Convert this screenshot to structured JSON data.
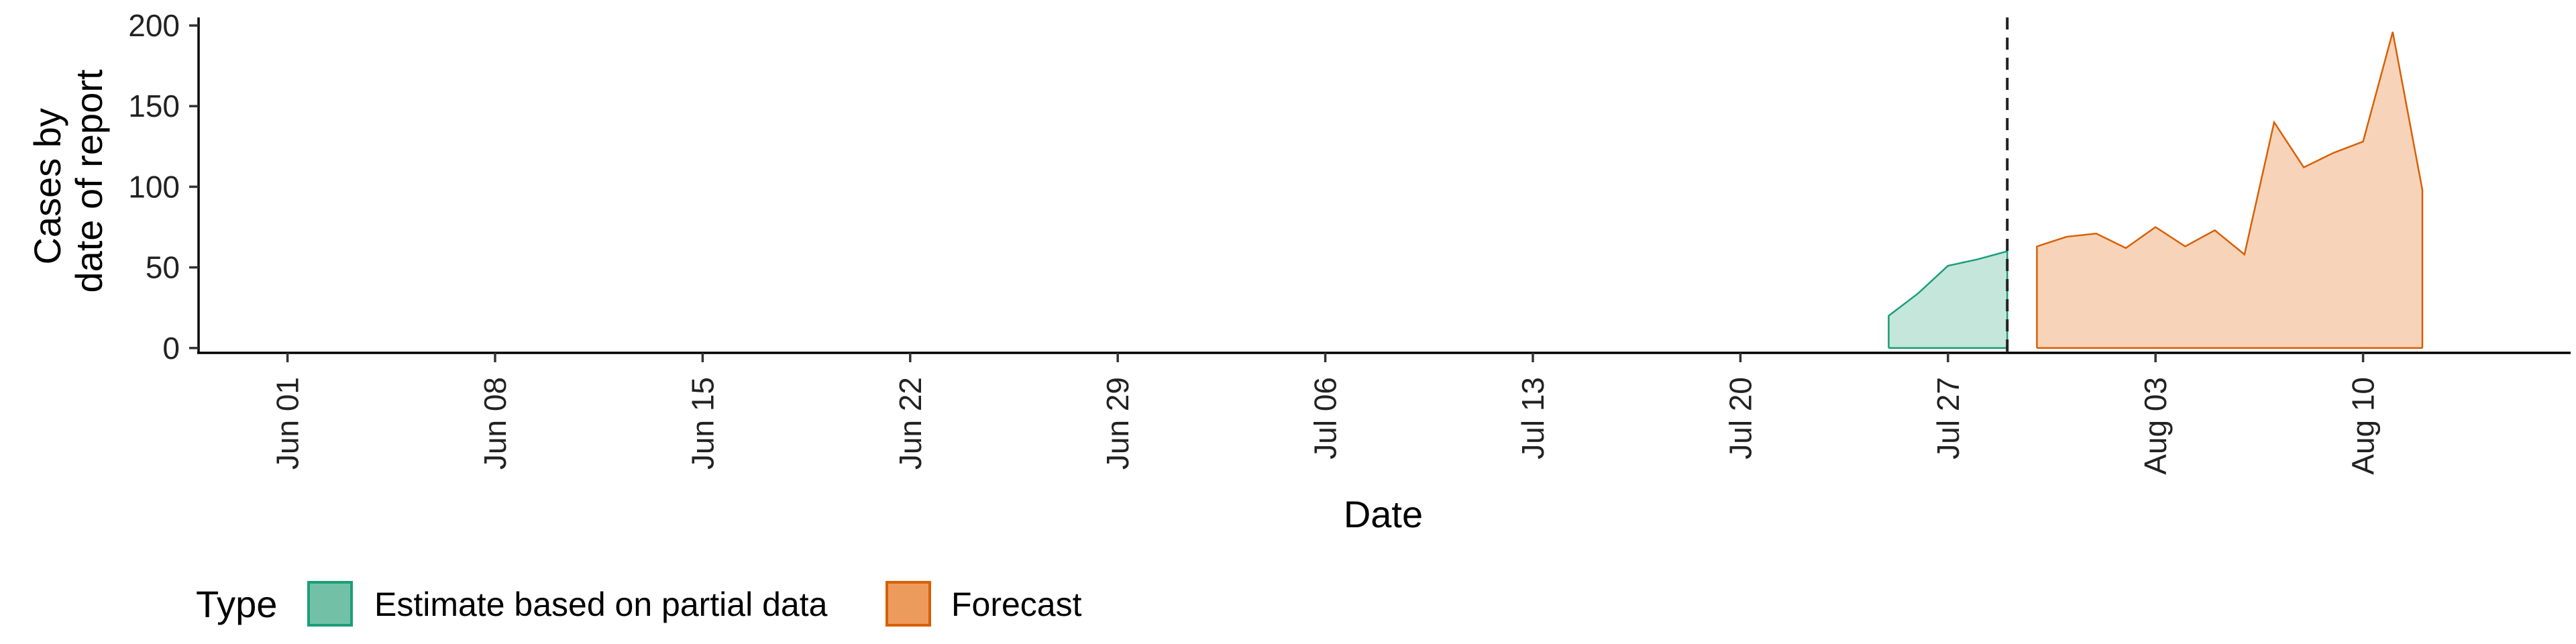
{
  "chart_data": {
    "type": "area",
    "xlabel": "Date",
    "ylabel_lines": [
      "Cases by",
      "date of report"
    ],
    "x_range": [
      "2020-05-29",
      "2020-08-17"
    ],
    "ylim": [
      -3,
      205
    ],
    "y_ticks": [
      0,
      50,
      100,
      150,
      200
    ],
    "x_ticks": [
      {
        "date": "2020-06-01",
        "label": "Jun 01"
      },
      {
        "date": "2020-06-08",
        "label": "Jun 08"
      },
      {
        "date": "2020-06-15",
        "label": "Jun 15"
      },
      {
        "date": "2020-06-22",
        "label": "Jun 22"
      },
      {
        "date": "2020-06-29",
        "label": "Jun 29"
      },
      {
        "date": "2020-07-06",
        "label": "Jul 06"
      },
      {
        "date": "2020-07-13",
        "label": "Jul 13"
      },
      {
        "date": "2020-07-20",
        "label": "Jul 20"
      },
      {
        "date": "2020-07-27",
        "label": "Jul 27"
      },
      {
        "date": "2020-08-03",
        "label": "Aug 03"
      },
      {
        "date": "2020-08-10",
        "label": "Aug 10"
      }
    ],
    "vline_date": "2020-07-29",
    "grid": false,
    "legend_position": "bottom-left",
    "legend_title": "Type",
    "series": [
      {
        "name": "Estimate based on partial data",
        "fill": "#c5e6db",
        "stroke": "#1b9e77",
        "legend_fill": "#72c1a6",
        "points": [
          {
            "date": "2020-07-25",
            "value": 20
          },
          {
            "date": "2020-07-26",
            "value": 34
          },
          {
            "date": "2020-07-27",
            "value": 51
          },
          {
            "date": "2020-07-28",
            "value": 55
          },
          {
            "date": "2020-07-29",
            "value": 60
          }
        ]
      },
      {
        "name": "Forecast",
        "fill": "#f7d4b9",
        "stroke": "#d95f02",
        "legend_fill": "#ec9b5d",
        "points": [
          {
            "date": "2020-07-30",
            "value": 63
          },
          {
            "date": "2020-07-31",
            "value": 69
          },
          {
            "date": "2020-08-01",
            "value": 71
          },
          {
            "date": "2020-08-02",
            "value": 62
          },
          {
            "date": "2020-08-03",
            "value": 75
          },
          {
            "date": "2020-08-04",
            "value": 63
          },
          {
            "date": "2020-08-05",
            "value": 73
          },
          {
            "date": "2020-08-06",
            "value": 58
          },
          {
            "date": "2020-08-07",
            "value": 140
          },
          {
            "date": "2020-08-08",
            "value": 112
          },
          {
            "date": "2020-08-09",
            "value": 121
          },
          {
            "date": "2020-08-10",
            "value": 128
          },
          {
            "date": "2020-08-11",
            "value": 196
          },
          {
            "date": "2020-08-12",
            "value": 98
          }
        ]
      }
    ]
  }
}
